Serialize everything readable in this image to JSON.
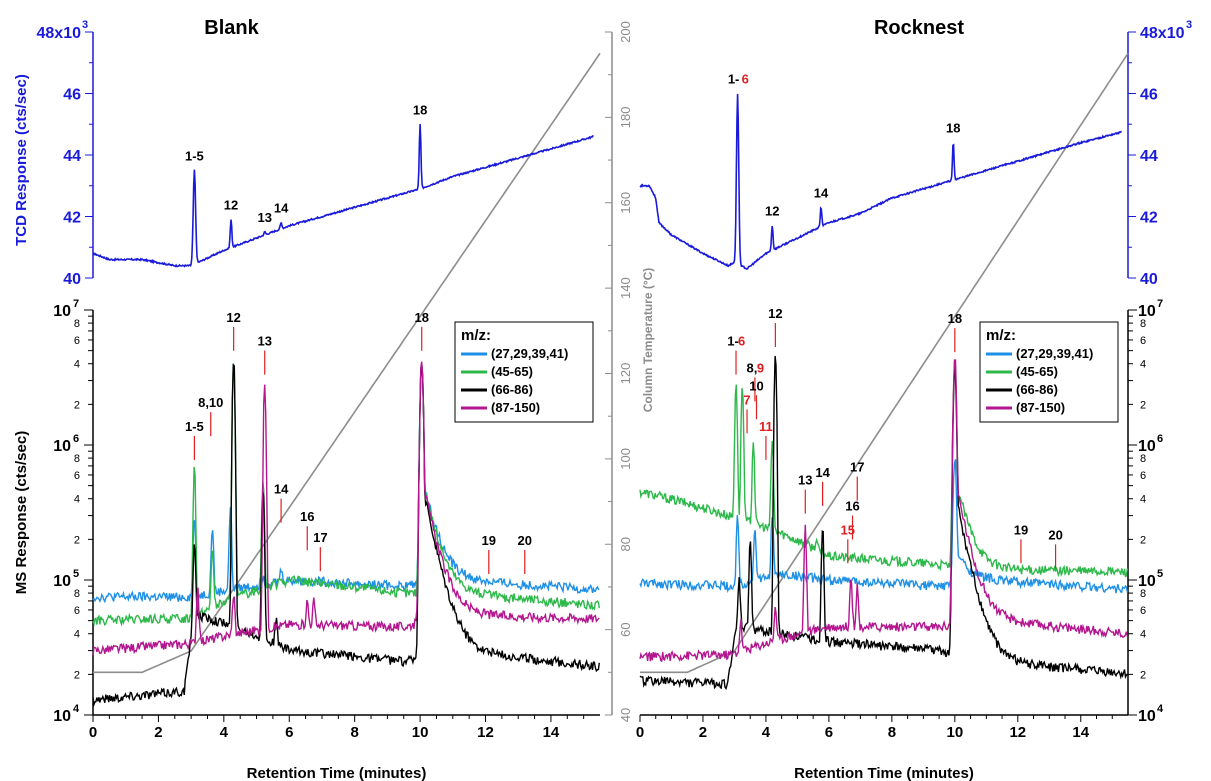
{
  "chart_data": {
    "type": "line",
    "panels": [
      {
        "title": "Blank",
        "xlabel": "Retention Time (minutes)",
        "xlim": [
          0,
          15.5
        ],
        "xticks": [
          "0",
          "2",
          "4",
          "6",
          "8",
          "10",
          "12",
          "14"
        ],
        "tcd": {
          "ylabel": "TCD Response (cts/sec)",
          "ylim": [
            40,
            48
          ],
          "ytick_labels": [
            "40",
            "42",
            "44",
            "46",
            "48x10"
          ],
          "exponent_label": "3",
          "peaks": [
            {
              "label": "1-5",
              "x": 3.1,
              "y": 43.5
            },
            {
              "label": "12",
              "x": 4.22,
              "y": 41.9
            },
            {
              "label": "13",
              "x": 5.25,
              "y": 41.5
            },
            {
              "label": "14",
              "x": 5.75,
              "y": 41.8
            },
            {
              "label": "18",
              "x": 10.0,
              "y": 45.0
            }
          ],
          "baseline": [
            [
              0,
              40.8
            ],
            [
              0.5,
              40.6
            ],
            [
              1.5,
              40.6
            ],
            [
              2.5,
              40.4
            ],
            [
              3.0,
              40.4
            ],
            [
              4.0,
              40.9
            ],
            [
              5.0,
              41.3
            ],
            [
              6.0,
              41.7
            ],
            [
              7.0,
              42.0
            ],
            [
              8.0,
              42.3
            ],
            [
              9.0,
              42.6
            ],
            [
              10.0,
              42.9
            ],
            [
              11.0,
              43.3
            ],
            [
              12.0,
              43.6
            ],
            [
              13.0,
              43.9
            ],
            [
              14.0,
              44.2
            ],
            [
              15.3,
              44.6
            ]
          ]
        },
        "ms": {
          "ylabel": "MS Response (cts/sec)",
          "ylim_log": [
            10000,
            10000000
          ],
          "ytick_labels": [
            "10",
            "10",
            "10",
            "10"
          ],
          "ytick_exponents": [
            "4",
            "5",
            "6",
            "7"
          ],
          "minor_tick_labels": [
            "2",
            "4",
            "6",
            "8"
          ],
          "legend_title": "m/z:",
          "legend_position": "right",
          "series": [
            {
              "name": "(27,29,39,41)",
              "color": "#1e90e6",
              "baseline": [
                [
                  0,
                  75000
                ],
                [
                  3,
                  75000
                ],
                [
                  6,
                  100000
                ],
                [
                  9.5,
                  90000
                ],
                [
                  11,
                  100000
                ],
                [
                  15.3,
                  85000
                ]
              ],
              "peaks": [
                [
                  3.1,
                  300000
                ],
                [
                  3.65,
                  250000
                ],
                [
                  4.2,
                  340000
                ],
                [
                  5.2,
                  110000
                ],
                [
                  5.75,
                  120000
                ],
                [
                  10.05,
                  4300000
                ]
              ]
            },
            {
              "name": "(45-65)",
              "color": "#2db84a",
              "baseline": [
                [
                  0,
                  50000
                ],
                [
                  3,
                  52000
                ],
                [
                  6,
                  100000
                ],
                [
                  9.5,
                  80000
                ],
                [
                  11,
                  80000
                ],
                [
                  15.3,
                  65000
                ]
              ],
              "peaks": [
                [
                  3.1,
                  700000
                ],
                [
                  3.65,
                  180000
                ],
                [
                  4.3,
                  4500000
                ],
                [
                  5.2,
                  600000
                ],
                [
                  5.75,
                  110000
                ],
                [
                  10.05,
                  4300000
                ]
              ]
            },
            {
              "name": "(66-86)",
              "color": "#000000",
              "baseline": [
                [
                  0,
                  13000
                ],
                [
                  2.8,
                  15000
                ],
                [
                  3.2,
                  55000
                ],
                [
                  6,
                  30000
                ],
                [
                  9.5,
                  25000
                ],
                [
                  11,
                  30000
                ],
                [
                  15.3,
                  23000
                ]
              ],
              "peaks": [
                [
                  3.1,
                  200000
                ],
                [
                  4.3,
                  4400000
                ],
                [
                  5.2,
                  500000
                ],
                [
                  5.6,
                  50000
                ],
                [
                  10.05,
                  4200000
                ]
              ]
            },
            {
              "name": "(87-150)",
              "color": "#b3168f",
              "baseline": [
                [
                  0,
                  30000
                ],
                [
                  3,
                  34000
                ],
                [
                  6,
                  47000
                ],
                [
                  9.5,
                  45000
                ],
                [
                  11,
                  55000
                ],
                [
                  15.3,
                  52000
                ]
              ],
              "peaks": [
                [
                  3.2,
                  90000
                ],
                [
                  4.3,
                  80000
                ],
                [
                  5.25,
                  2900000
                ],
                [
                  6.55,
                  70000
                ],
                [
                  6.75,
                  70000
                ],
                [
                  10.05,
                  4400000
                ]
              ]
            }
          ],
          "peak_labels": [
            {
              "label": "1-5",
              "x": 3.1,
              "y": 700000
            },
            {
              "label": "8,10",
              "x": 3.6,
              "y": 1050000
            },
            {
              "label": "12",
              "x": 4.3,
              "y": 4500000
            },
            {
              "label": "13",
              "x": 5.25,
              "y": 3000000
            },
            {
              "label": "14",
              "x": 5.75,
              "y": 240000
            },
            {
              "label": "16",
              "x": 6.55,
              "y": 150000
            },
            {
              "label": "17",
              "x": 6.95,
              "y": 105000
            },
            {
              "label": "18",
              "x": 10.05,
              "y": 4500000
            },
            {
              "label": "19",
              "x": 12.1,
              "y": 100000
            },
            {
              "label": "20",
              "x": 13.2,
              "y": 100000
            }
          ]
        }
      },
      {
        "title": "Rocknest",
        "xlabel": "Retention Time (minutes)",
        "xlim": [
          0,
          15.5
        ],
        "xticks": [
          "0",
          "2",
          "4",
          "6",
          "8",
          "10",
          "12",
          "14"
        ],
        "tcd": {
          "ylim": [
            40,
            48
          ],
          "ytick_labels": [
            "40",
            "42",
            "44",
            "46",
            "48x10"
          ],
          "exponent_label": "3",
          "peaks": [
            {
              "label": "1-",
              "label_red": "6",
              "x": 3.1,
              "y": 46.0
            },
            {
              "label": "12",
              "x": 4.2,
              "y": 41.7
            },
            {
              "label": "14",
              "x": 5.75,
              "y": 42.3
            },
            {
              "label": "18",
              "x": 9.95,
              "y": 44.4
            }
          ],
          "baseline": [
            [
              0,
              43.0
            ],
            [
              0.3,
              43.0
            ],
            [
              0.5,
              42.6
            ],
            [
              0.6,
              41.8
            ],
            [
              1.0,
              41.4
            ],
            [
              2.0,
              40.8
            ],
            [
              2.8,
              40.4
            ],
            [
              3.0,
              40.5
            ],
            [
              3.4,
              40.3
            ],
            [
              4.0,
              40.8
            ],
            [
              5.0,
              41.3
            ],
            [
              6.0,
              41.8
            ],
            [
              7.0,
              42.1
            ],
            [
              8.0,
              42.6
            ],
            [
              9.0,
              42.9
            ],
            [
              10.0,
              43.2
            ],
            [
              11.0,
              43.5
            ],
            [
              12.0,
              43.8
            ],
            [
              13.0,
              44.1
            ],
            [
              14.0,
              44.4
            ],
            [
              15.5,
              44.8
            ]
          ]
        },
        "ms": {
          "ytick_labels": [
            "10",
            "10",
            "10",
            "10"
          ],
          "ytick_exponents": [
            "4",
            "5",
            "6",
            "7"
          ],
          "minor_tick_labels": [
            "2",
            "4",
            "6",
            "8"
          ],
          "legend_title": "m/z:",
          "legend_position": "right",
          "series": [
            {
              "name": "(27,29,39,41)",
              "color": "#1e90e6",
              "baseline": [
                [
                  0,
                  95000
                ],
                [
                  3,
                  90000
                ],
                [
                  4.5,
                  110000
                ],
                [
                  6,
                  100000
                ],
                [
                  9.5,
                  90000
                ],
                [
                  11,
                  100000
                ],
                [
                  15.5,
                  85000
                ]
              ],
              "peaks": [
                [
                  3.1,
                  300000
                ],
                [
                  3.65,
                  250000
                ],
                [
                  4.2,
                  300000
                ],
                [
                  10.0,
                  800000
                ]
              ]
            },
            {
              "name": "(45-65)",
              "color": "#2db84a",
              "baseline": [
                [
                  0,
                  450000
                ],
                [
                  2.8,
                  300000
                ],
                [
                  6,
                  150000
                ],
                [
                  9.5,
                  130000
                ],
                [
                  11,
                  120000
                ],
                [
                  15.5,
                  115000
                ]
              ],
              "peaks": [
                [
                  3.05,
                  3000000
                ],
                [
                  3.25,
                  2800000
                ],
                [
                  3.6,
                  1100000
                ],
                [
                  4.2,
                  1100000
                ],
                [
                  5.6,
                  200000
                ],
                [
                  10.0,
                  4000000
                ]
              ]
            },
            {
              "name": "(66-86)",
              "color": "#000000",
              "baseline": [
                [
                  0,
                  18000
                ],
                [
                  2.8,
                  17000
                ],
                [
                  3.1,
                  45000
                ],
                [
                  6,
                  35000
                ],
                [
                  9.5,
                  30000
                ],
                [
                  11,
                  25000
                ],
                [
                  15.5,
                  20000
                ]
              ],
              "peaks": [
                [
                  3.15,
                  100000
                ],
                [
                  3.5,
                  200000
                ],
                [
                  4.3,
                  4800000
                ],
                [
                  5.8,
                  250000
                ],
                [
                  10.0,
                  3600000
                ]
              ]
            },
            {
              "name": "(87-150)",
              "color": "#b3168f",
              "baseline": [
                [
                  0,
                  27000
                ],
                [
                  2.9,
                  28000
                ],
                [
                  6,
                  45000
                ],
                [
                  9.5,
                  45000
                ],
                [
                  11,
                  50000
                ],
                [
                  15.5,
                  40000
                ]
              ],
              "peaks": [
                [
                  3.2,
                  50000
                ],
                [
                  4.3,
                  65000
                ],
                [
                  5.25,
                  250000
                ],
                [
                  6.7,
                  110000
                ],
                [
                  6.9,
                  90000
                ],
                [
                  10.0,
                  4400000
                ]
              ]
            }
          ],
          "peak_labels": [
            {
              "label": "1-",
              "label_red": "6",
              "x": 3.05,
              "y": 3000000
            },
            {
              "label": "7",
              "red": true,
              "x": 3.4,
              "y": 1100000
            },
            {
              "label": "8,",
              "label_red": "9",
              "x": 3.65,
              "y": 1900000
            },
            {
              "label": "10",
              "x": 3.7,
              "y": 1400000
            },
            {
              "label": "11",
              "red": true,
              "x": 4.0,
              "y": 700000
            },
            {
              "label": "12",
              "x": 4.3,
              "y": 4800000
            },
            {
              "label": "13",
              "x": 5.25,
              "y": 280000
            },
            {
              "label": "14",
              "x": 5.8,
              "y": 320000
            },
            {
              "label": "15",
              "red": true,
              "x": 6.6,
              "y": 120000
            },
            {
              "label": "16",
              "x": 6.75,
              "y": 180000
            },
            {
              "label": "17",
              "x": 6.9,
              "y": 350000
            },
            {
              "label": "18",
              "x": 10.0,
              "y": 4400000
            },
            {
              "label": "19",
              "x": 12.1,
              "y": 120000
            },
            {
              "label": "20",
              "x": 13.2,
              "y": 110000
            }
          ]
        }
      }
    ],
    "column_temperature": {
      "label": "Column Temperature (°C)",
      "ylim": [
        40,
        200
      ],
      "ytick_labels": [
        "40",
        "60",
        "80",
        "100",
        "120",
        "140",
        "160",
        "180",
        "200"
      ],
      "ramp": [
        [
          0,
          50
        ],
        [
          1.5,
          50
        ],
        [
          3.0,
          55
        ],
        [
          15.5,
          195
        ]
      ]
    }
  }
}
